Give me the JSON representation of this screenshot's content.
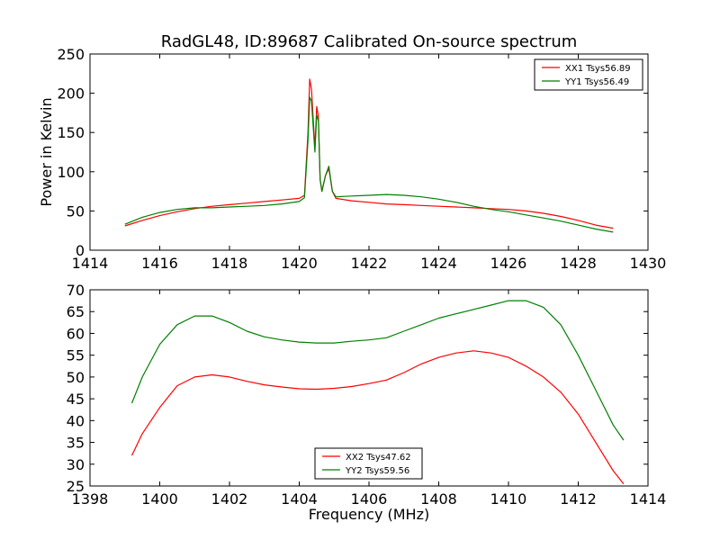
{
  "title": "RadGL48, ID:89687 Calibrated On-source spectrum",
  "colors": {
    "xx": "#ff0000",
    "yy": "#008000"
  },
  "chart_data": [
    {
      "type": "line",
      "title": "RadGL48, ID:89687 Calibrated On-source spectrum",
      "xlabel": "",
      "ylabel": "Power in Kelvin",
      "xlim": [
        1414,
        1430
      ],
      "ylim": [
        0,
        250
      ],
      "xticks": [
        "1414",
        "1416",
        "1418",
        "1420",
        "1422",
        "1424",
        "1426",
        "1428",
        "1430"
      ],
      "yticks": [
        "0",
        "50",
        "100",
        "150",
        "200",
        "250"
      ],
      "legend": "top-right",
      "series": [
        {
          "name": "XX1 Tsys56.89",
          "color": "#ff0000",
          "x": [
            1415.0,
            1415.5,
            1416.0,
            1416.5,
            1417.0,
            1417.5,
            1418.0,
            1418.5,
            1419.0,
            1419.5,
            1420.0,
            1420.15,
            1420.25,
            1420.3,
            1420.35,
            1420.45,
            1420.5,
            1420.55,
            1420.6,
            1420.65,
            1420.75,
            1420.85,
            1420.95,
            1421.05,
            1421.5,
            1422.0,
            1422.5,
            1423.0,
            1423.5,
            1424.0,
            1424.5,
            1425.0,
            1425.5,
            1426.0,
            1426.5,
            1427.0,
            1427.5,
            1428.0,
            1428.5,
            1429.0
          ],
          "y": [
            31,
            38,
            44,
            49,
            53,
            56,
            58,
            60,
            62,
            64,
            66,
            70,
            150,
            218,
            205,
            130,
            183,
            170,
            90,
            75,
            95,
            104,
            75,
            66,
            63,
            61,
            59,
            58,
            57,
            56,
            55,
            54,
            53,
            52,
            50,
            47,
            43,
            38,
            32,
            28
          ]
        },
        {
          "name": "YY1 Tsys56.49",
          "color": "#008000",
          "x": [
            1415.0,
            1415.5,
            1416.0,
            1416.5,
            1417.0,
            1417.5,
            1418.0,
            1418.5,
            1419.0,
            1419.5,
            1420.0,
            1420.15,
            1420.25,
            1420.3,
            1420.35,
            1420.45,
            1420.5,
            1420.55,
            1420.6,
            1420.65,
            1420.75,
            1420.85,
            1420.95,
            1421.05,
            1421.5,
            1422.0,
            1422.5,
            1423.0,
            1423.5,
            1424.0,
            1424.5,
            1425.0,
            1425.5,
            1426.0,
            1426.5,
            1427.0,
            1427.5,
            1428.0,
            1428.5,
            1429.0
          ],
          "y": [
            33,
            42,
            48,
            52,
            54,
            54,
            55,
            56,
            57,
            59,
            62,
            67,
            140,
            195,
            190,
            125,
            172,
            165,
            90,
            75,
            95,
            107,
            75,
            68,
            69,
            70,
            71,
            70,
            68,
            65,
            61,
            56,
            52,
            49,
            45,
            41,
            37,
            32,
            27,
            23
          ]
        }
      ]
    },
    {
      "type": "line",
      "title": "",
      "xlabel": "Frequency (MHz)",
      "ylabel": "",
      "xlim": [
        1398,
        1414
      ],
      "ylim": [
        25,
        70
      ],
      "xticks": [
        "1398",
        "1400",
        "1402",
        "1404",
        "1406",
        "1408",
        "1410",
        "1412",
        "1414"
      ],
      "yticks": [
        "25",
        "30",
        "35",
        "40",
        "45",
        "50",
        "55",
        "60",
        "65",
        "70"
      ],
      "legend": "bottom-center",
      "series": [
        {
          "name": "XX2 Tsys47.62",
          "color": "#ff0000",
          "x": [
            1399.2,
            1399.5,
            1400.0,
            1400.5,
            1401.0,
            1401.5,
            1402.0,
            1402.5,
            1403.0,
            1403.5,
            1404.0,
            1404.5,
            1405.0,
            1405.5,
            1406.0,
            1406.5,
            1407.0,
            1407.5,
            1408.0,
            1408.5,
            1409.0,
            1409.5,
            1410.0,
            1410.5,
            1411.0,
            1411.5,
            1412.0,
            1412.5,
            1413.0,
            1413.3
          ],
          "y": [
            32,
            37,
            43,
            48,
            50,
            50.5,
            50,
            49,
            48.2,
            47.7,
            47.3,
            47.2,
            47.4,
            47.8,
            48.5,
            49.3,
            51,
            53,
            54.5,
            55.5,
            56,
            55.5,
            54.5,
            52.5,
            50,
            46.5,
            41.5,
            35,
            28.5,
            25.5
          ]
        },
        {
          "name": "YY2 Tsys59.56",
          "color": "#008000",
          "x": [
            1399.2,
            1399.5,
            1400.0,
            1400.5,
            1401.0,
            1401.5,
            1402.0,
            1402.5,
            1403.0,
            1403.5,
            1404.0,
            1404.5,
            1405.0,
            1405.5,
            1406.0,
            1406.5,
            1407.0,
            1407.5,
            1408.0,
            1408.5,
            1409.0,
            1409.5,
            1410.0,
            1410.5,
            1411.0,
            1411.5,
            1412.0,
            1412.5,
            1413.0,
            1413.3
          ],
          "y": [
            44,
            50,
            57.5,
            62,
            64,
            64,
            62.5,
            60.5,
            59.2,
            58.5,
            58,
            57.8,
            57.8,
            58.2,
            58.5,
            59,
            60.5,
            62,
            63.5,
            64.5,
            65.5,
            66.5,
            67.5,
            67.5,
            66,
            62,
            55,
            47,
            39,
            35.5
          ]
        }
      ]
    }
  ]
}
